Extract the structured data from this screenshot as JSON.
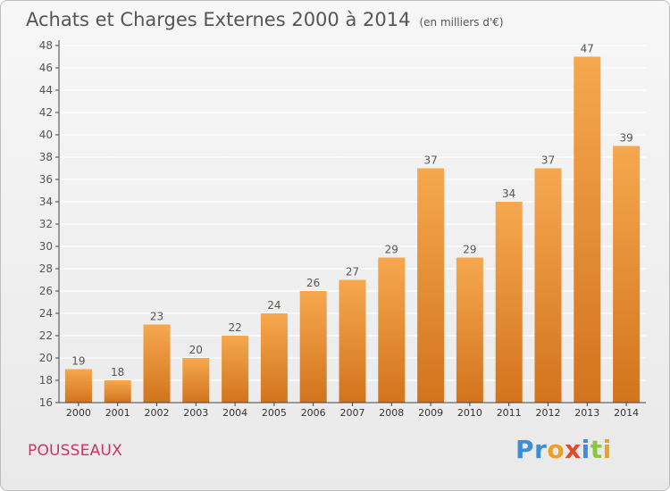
{
  "title": "Achats et Charges Externes 2000 à 2014",
  "unit": "(en milliers d'€)",
  "city": "POUSSEAUX",
  "logo": {
    "text": "Proxiti",
    "letters": [
      {
        "char": "P",
        "color": "#3c8fd6"
      },
      {
        "char": "r",
        "color": "#3c8fd6"
      },
      {
        "char": "o",
        "color": "#f0a020"
      },
      {
        "char": "x",
        "color": "#e24a2c"
      },
      {
        "char": "i",
        "color": "#3c8fd6"
      },
      {
        "char": "t",
        "color": "#8cc63f"
      },
      {
        "char": "i",
        "color": "#f0a020"
      }
    ]
  },
  "colors": {
    "bar_top": "#f6a84f",
    "bar_bottom": "#d2741c",
    "axis": "#444444",
    "grid": "#ffffff",
    "text": "#555555"
  },
  "chart_data": {
    "type": "bar",
    "categories": [
      "2000",
      "2001",
      "2002",
      "2003",
      "2004",
      "2005",
      "2006",
      "2007",
      "2008",
      "2009",
      "2010",
      "2011",
      "2012",
      "2013",
      "2014"
    ],
    "values": [
      19,
      18,
      23,
      20,
      22,
      24,
      26,
      27,
      29,
      37,
      29,
      34,
      37,
      47,
      39
    ],
    "ylim": [
      16,
      48
    ],
    "yticks": [
      16,
      18,
      20,
      22,
      24,
      26,
      28,
      30,
      32,
      34,
      36,
      38,
      40,
      42,
      44,
      46,
      48
    ],
    "grid": true,
    "legend": "none",
    "xlabel": "",
    "ylabel": ""
  }
}
